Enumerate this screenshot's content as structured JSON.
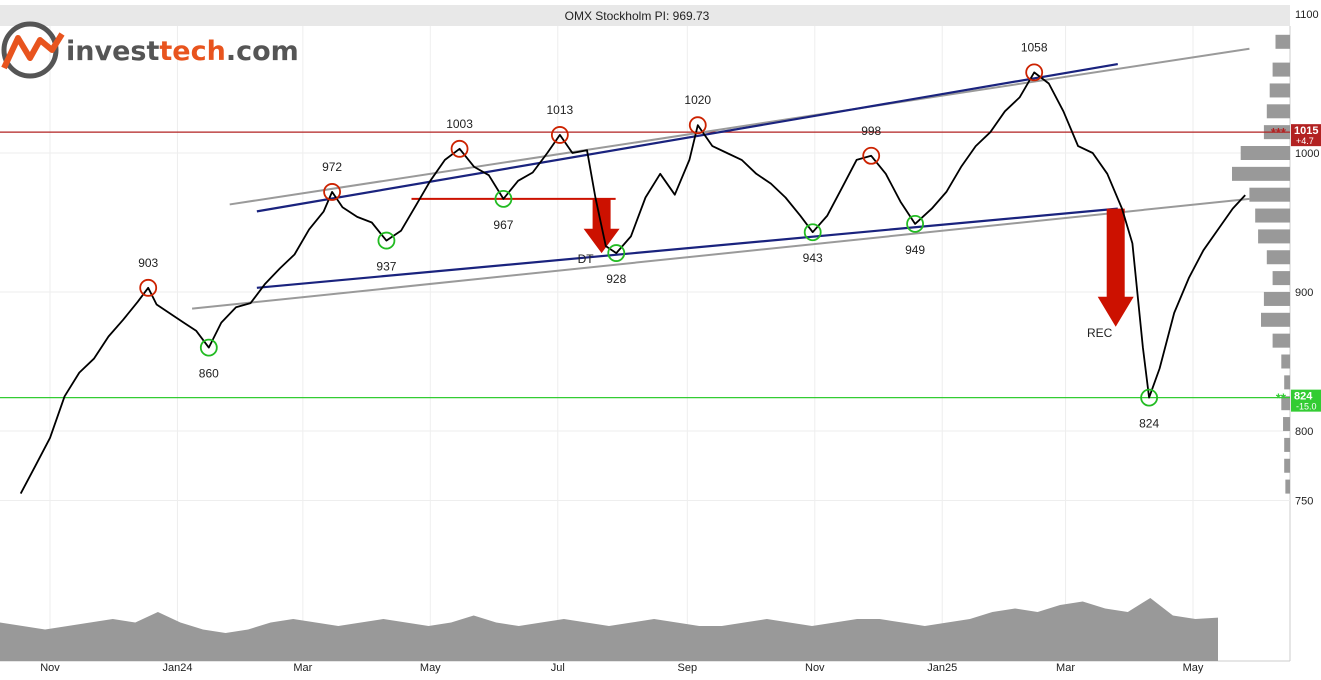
{
  "title": "OMX Stockholm PI: 969.73",
  "logo": {
    "part1": "invest",
    "part2": "tech",
    "part3": ".com"
  },
  "colors": {
    "price_line": "#000000",
    "channel_outer": "#9a9a9a",
    "channel_inner": "#1a237e",
    "resistance": "#b22222",
    "support": "#33cc33",
    "top_marker": "#cc2200",
    "bottom_marker": "#22bb22",
    "signal_arrow": "#cc1100",
    "volume": "#999999",
    "volume_profile": "#999999",
    "logo_orange": "#e8541e",
    "logo_gray": "#555555"
  },
  "chart_data": {
    "type": "line",
    "title": "OMX Stockholm PI: 969.73",
    "ylim": [
      720,
      1100
    ],
    "y_ticks": [
      750,
      800,
      900,
      1000,
      1100
    ],
    "x_ticks": [
      {
        "label": "Nov",
        "x": "2023-11-01"
      },
      {
        "label": "Jan24",
        "x": "2024-01-01"
      },
      {
        "label": "Mar",
        "x": "2024-03-01"
      },
      {
        "label": "May",
        "x": "2024-05-01"
      },
      {
        "label": "Jul",
        "x": "2024-07-01"
      },
      {
        "label": "Sep",
        "x": "2024-09-01"
      },
      {
        "label": "Nov",
        "x": "2024-11-01"
      },
      {
        "label": "Jan25",
        "x": "2025-01-01"
      },
      {
        "label": "Mar",
        "x": "2025-03-01"
      },
      {
        "label": "May",
        "x": "2025-05-01"
      }
    ],
    "grid": true,
    "series": [
      {
        "values": [
          [
            "2023-10-18",
            755
          ],
          [
            "2023-10-25",
            775
          ],
          [
            "2023-11-01",
            795
          ],
          [
            "2023-11-08",
            825
          ],
          [
            "2023-11-15",
            842
          ],
          [
            "2023-11-22",
            852
          ],
          [
            "2023-11-29",
            868
          ],
          [
            "2023-12-06",
            880
          ],
          [
            "2023-12-13",
            893
          ],
          [
            "2023-12-18",
            903
          ],
          [
            "2023-12-22",
            891
          ],
          [
            "2023-12-28",
            885
          ],
          [
            "2024-01-04",
            878
          ],
          [
            "2024-01-10",
            872
          ],
          [
            "2024-01-16",
            860
          ],
          [
            "2024-01-22",
            878
          ],
          [
            "2024-01-29",
            889
          ],
          [
            "2024-02-05",
            892
          ],
          [
            "2024-02-12",
            906
          ],
          [
            "2024-02-19",
            917
          ],
          [
            "2024-02-26",
            927
          ],
          [
            "2024-03-04",
            945
          ],
          [
            "2024-03-11",
            958
          ],
          [
            "2024-03-15",
            972
          ],
          [
            "2024-03-20",
            961
          ],
          [
            "2024-03-27",
            954
          ],
          [
            "2024-04-03",
            950
          ],
          [
            "2024-04-10",
            937
          ],
          [
            "2024-04-17",
            944
          ],
          [
            "2024-04-24",
            962
          ],
          [
            "2024-05-01",
            980
          ],
          [
            "2024-05-08",
            995
          ],
          [
            "2024-05-15",
            1003
          ],
          [
            "2024-05-22",
            990
          ],
          [
            "2024-05-29",
            984
          ],
          [
            "2024-06-05",
            967
          ],
          [
            "2024-06-12",
            980
          ],
          [
            "2024-06-19",
            986
          ],
          [
            "2024-06-26",
            1000
          ],
          [
            "2024-07-02",
            1013
          ],
          [
            "2024-07-08",
            1000
          ],
          [
            "2024-07-15",
            1002
          ],
          [
            "2024-07-19",
            968
          ],
          [
            "2024-07-24",
            933
          ],
          [
            "2024-07-29",
            928
          ],
          [
            "2024-08-05",
            940
          ],
          [
            "2024-08-12",
            968
          ],
          [
            "2024-08-19",
            985
          ],
          [
            "2024-08-26",
            970
          ],
          [
            "2024-09-02",
            995
          ],
          [
            "2024-09-06",
            1020
          ],
          [
            "2024-09-13",
            1005
          ],
          [
            "2024-09-20",
            1000
          ],
          [
            "2024-09-27",
            995
          ],
          [
            "2024-10-04",
            985
          ],
          [
            "2024-10-11",
            978
          ],
          [
            "2024-10-18",
            968
          ],
          [
            "2024-10-25",
            955
          ],
          [
            "2024-10-31",
            943
          ],
          [
            "2024-11-07",
            955
          ],
          [
            "2024-11-14",
            975
          ],
          [
            "2024-11-21",
            995
          ],
          [
            "2024-11-28",
            998
          ],
          [
            "2024-12-05",
            985
          ],
          [
            "2024-12-12",
            965
          ],
          [
            "2024-12-19",
            949
          ],
          [
            "2024-12-27",
            960
          ],
          [
            "2025-01-03",
            972
          ],
          [
            "2025-01-10",
            990
          ],
          [
            "2025-01-17",
            1005
          ],
          [
            "2025-01-24",
            1015
          ],
          [
            "2025-01-31",
            1030
          ],
          [
            "2025-02-07",
            1040
          ],
          [
            "2025-02-14",
            1058
          ],
          [
            "2025-02-21",
            1050
          ],
          [
            "2025-02-28",
            1030
          ],
          [
            "2025-03-07",
            1005
          ],
          [
            "2025-03-14",
            1000
          ],
          [
            "2025-03-21",
            985
          ],
          [
            "2025-03-28",
            960
          ],
          [
            "2025-04-02",
            935
          ],
          [
            "2025-04-07",
            860
          ],
          [
            "2025-04-10",
            824
          ],
          [
            "2025-04-15",
            845
          ],
          [
            "2025-04-22",
            885
          ],
          [
            "2025-04-29",
            910
          ],
          [
            "2025-05-06",
            930
          ],
          [
            "2025-05-13",
            945
          ],
          [
            "2025-05-20",
            960
          ],
          [
            "2025-05-26",
            969.73
          ]
        ]
      }
    ],
    "channel_outer_upper": [
      [
        "2024-01-26",
        963
      ],
      [
        "2025-05-28",
        1075
      ]
    ],
    "channel_outer_lower": [
      [
        "2024-01-08",
        888
      ],
      [
        "2025-05-28",
        967
      ]
    ],
    "channel_inner_upper": [
      [
        "2024-02-08",
        958
      ],
      [
        "2025-03-26",
        1064
      ]
    ],
    "channel_inner_lower": [
      [
        "2024-02-08",
        903
      ],
      [
        "2025-03-26",
        960
      ]
    ],
    "horizontal_levels": [
      {
        "value": 1015,
        "label": "***1015",
        "sublabel": "+4.7",
        "color": "#b22222"
      },
      {
        "value": 824,
        "label": "**824",
        "sublabel": "-15.0",
        "color": "#33cc33"
      }
    ],
    "annotations": [
      {
        "kind": "top",
        "text": "903",
        "date": "2023-12-18",
        "value": 903
      },
      {
        "kind": "bottom",
        "text": "860",
        "date": "2024-01-16",
        "value": 860
      },
      {
        "kind": "top",
        "text": "972",
        "date": "2024-03-15",
        "value": 972
      },
      {
        "kind": "bottom",
        "text": "937",
        "date": "2024-04-10",
        "value": 937
      },
      {
        "kind": "top",
        "text": "1003",
        "date": "2024-05-15",
        "value": 1003
      },
      {
        "kind": "bottom",
        "text": "967",
        "date": "2024-06-05",
        "value": 967
      },
      {
        "kind": "top",
        "text": "1013",
        "date": "2024-07-02",
        "value": 1013
      },
      {
        "kind": "bottom",
        "text": "928",
        "date": "2024-07-29",
        "value": 928
      },
      {
        "kind": "top",
        "text": "1020",
        "date": "2024-09-06",
        "value": 1020
      },
      {
        "kind": "bottom",
        "text": "943",
        "date": "2024-10-31",
        "value": 943
      },
      {
        "kind": "top",
        "text": "998",
        "date": "2024-11-28",
        "value": 998
      },
      {
        "kind": "bottom",
        "text": "949",
        "date": "2024-12-19",
        "value": 949
      },
      {
        "kind": "top",
        "text": "1058",
        "date": "2025-02-14",
        "value": 1058
      },
      {
        "kind": "bottom",
        "text": "824",
        "date": "2025-04-10",
        "value": 824
      }
    ],
    "signals": [
      {
        "text": "DT",
        "date": "2024-07-22",
        "from": 967,
        "to": 928,
        "neckline_start": "2024-04-22"
      },
      {
        "text": "REC",
        "date": "2025-03-25",
        "from": 960,
        "to": 875
      }
    ],
    "volume": [
      0.55,
      0.5,
      0.45,
      0.5,
      0.55,
      0.6,
      0.55,
      0.7,
      0.55,
      0.45,
      0.4,
      0.45,
      0.55,
      0.6,
      0.55,
      0.5,
      0.55,
      0.6,
      0.55,
      0.5,
      0.55,
      0.65,
      0.55,
      0.5,
      0.55,
      0.6,
      0.55,
      0.5,
      0.55,
      0.6,
      0.55,
      0.5,
      0.5,
      0.55,
      0.6,
      0.55,
      0.5,
      0.55,
      0.6,
      0.6,
      0.55,
      0.5,
      0.55,
      0.6,
      0.7,
      0.75,
      0.7,
      0.8,
      0.85,
      0.75,
      0.7,
      0.9,
      0.65,
      0.6,
      0.62
    ],
    "volume_profile": [
      {
        "price": 1080,
        "weight": 0.25
      },
      {
        "price": 1060,
        "weight": 0.3
      },
      {
        "price": 1045,
        "weight": 0.35
      },
      {
        "price": 1030,
        "weight": 0.4
      },
      {
        "price": 1015,
        "weight": 0.45
      },
      {
        "price": 1000,
        "weight": 0.85
      },
      {
        "price": 985,
        "weight": 1.0
      },
      {
        "price": 970,
        "weight": 0.7
      },
      {
        "price": 955,
        "weight": 0.6
      },
      {
        "price": 940,
        "weight": 0.55
      },
      {
        "price": 925,
        "weight": 0.4
      },
      {
        "price": 910,
        "weight": 0.3
      },
      {
        "price": 895,
        "weight": 0.45
      },
      {
        "price": 880,
        "weight": 0.5
      },
      {
        "price": 865,
        "weight": 0.3
      },
      {
        "price": 850,
        "weight": 0.15
      },
      {
        "price": 835,
        "weight": 0.1
      },
      {
        "price": 820,
        "weight": 0.15
      },
      {
        "price": 805,
        "weight": 0.12
      },
      {
        "price": 790,
        "weight": 0.1
      },
      {
        "price": 775,
        "weight": 0.1
      },
      {
        "price": 760,
        "weight": 0.08
      }
    ]
  }
}
